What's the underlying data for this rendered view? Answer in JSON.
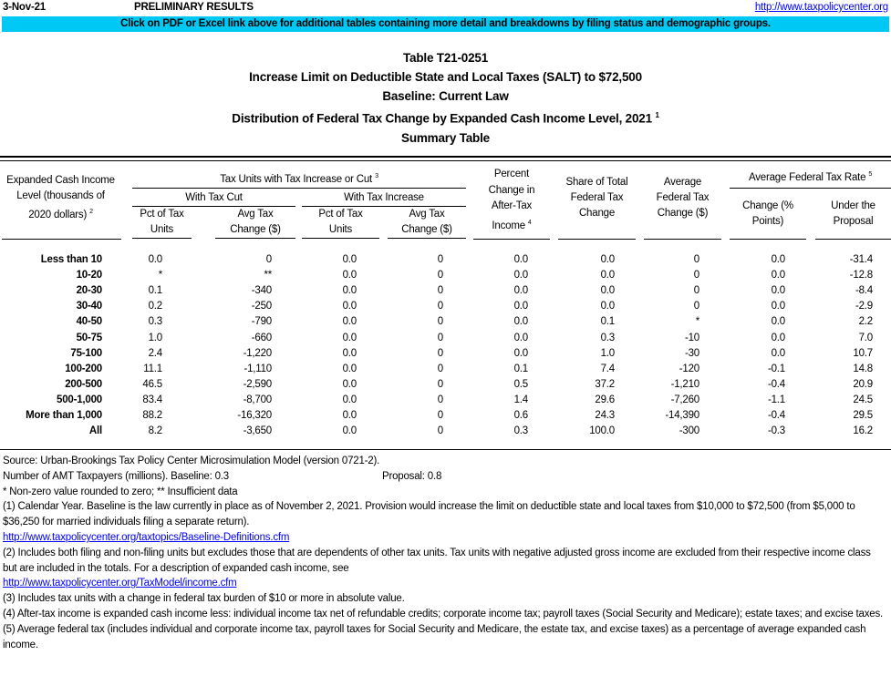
{
  "header": {
    "date": "3-Nov-21",
    "status": "PRELIMINARY RESULTS",
    "link": "http://www.taxpolicycenter.org"
  },
  "banner": "Click on PDF or Excel link above for additional tables containing more detail and breakdowns by filing status and demographic groups.",
  "titles": [
    "Table T21-0251",
    "Increase Limit on Deductible State and Local Taxes (SALT) to $72,500",
    "Baseline: Current Law",
    "Distribution of Federal Tax Change by Expanded Cash Income Level, 2021",
    "Summary Table"
  ],
  "title_footnote": "1",
  "columns": {
    "income": [
      "Expanded Cash Income",
      "Level (thousands of",
      "2020 dollars)"
    ],
    "income_fn": "2",
    "group": "Tax Units with Tax Increase or Cut",
    "group_fn": "3",
    "cut": "With Tax Cut",
    "increase": "With Tax Increase",
    "pct": [
      "Pct of Tax",
      "Units"
    ],
    "avg": [
      "Avg Tax",
      "Change ($)"
    ],
    "pctchange": [
      "Percent",
      "Change in",
      "After-Tax",
      "Income"
    ],
    "pctchange_fn": "4",
    "share": [
      "Share of Total",
      "Federal Tax",
      "Change"
    ],
    "avgfed": [
      "Average",
      "Federal Tax",
      "Change ($)"
    ],
    "rate": "Average Federal Tax Rate",
    "rate_fn": "5",
    "rate_change": [
      "Change (%",
      "Points)"
    ],
    "rate_under": [
      "Under the",
      "Proposal"
    ]
  },
  "rows": [
    [
      "Less than 10",
      "0.0",
      "0",
      "0.0",
      "0",
      "0.0",
      "0.0",
      "0",
      "0.0",
      "-31.4"
    ],
    [
      "10-20",
      "*",
      "**",
      "0.0",
      "0",
      "0.0",
      "0.0",
      "0",
      "0.0",
      "-12.8"
    ],
    [
      "20-30",
      "0.1",
      "-340",
      "0.0",
      "0",
      "0.0",
      "0.0",
      "0",
      "0.0",
      "-8.4"
    ],
    [
      "30-40",
      "0.2",
      "-250",
      "0.0",
      "0",
      "0.0",
      "0.0",
      "0",
      "0.0",
      "-2.9"
    ],
    [
      "40-50",
      "0.3",
      "-790",
      "0.0",
      "0",
      "0.0",
      "0.1",
      "*",
      "0.0",
      "2.2"
    ],
    [
      "50-75",
      "1.0",
      "-660",
      "0.0",
      "0",
      "0.0",
      "0.3",
      "-10",
      "0.0",
      "7.0"
    ],
    [
      "75-100",
      "2.4",
      "-1,220",
      "0.0",
      "0",
      "0.0",
      "1.0",
      "-30",
      "0.0",
      "10.7"
    ],
    [
      "100-200",
      "11.1",
      "-1,110",
      "0.0",
      "0",
      "0.1",
      "7.4",
      "-120",
      "-0.1",
      "14.8"
    ],
    [
      "200-500",
      "46.5",
      "-2,590",
      "0.0",
      "0",
      "0.5",
      "37.2",
      "-1,210",
      "-0.4",
      "20.9"
    ],
    [
      "500-1,000",
      "83.4",
      "-8,700",
      "0.0",
      "0",
      "1.4",
      "29.6",
      "-7,260",
      "-1.1",
      "24.5"
    ],
    [
      "More than 1,000",
      "88.2",
      "-16,320",
      "0.0",
      "0",
      "0.6",
      "24.3",
      "-14,390",
      "-0.4",
      "29.5"
    ],
    [
      "All",
      "8.2",
      "-3,650",
      "0.0",
      "0",
      "0.3",
      "100.0",
      "-300",
      "-0.3",
      "16.2"
    ]
  ],
  "notes": {
    "source": "Source: Urban-Brookings Tax Policy Center Microsimulation Model (version 0721-2).",
    "amt": "Number of AMT Taxpayers (millions).  Baseline: 0.3",
    "amt_prop": "Proposal: 0.8",
    "star": "* Non-zero value rounded to zero; ** Insufficient data",
    "n1": "(1) Calendar Year. Baseline is the law currently in place as of November 2, 2021. Provision would increase the limit on deductible state and local taxes from $10,000 to $72,500 (from $5,000 to $36,250 for married individuals filing a separate return).",
    "n1_link": "http://www.taxpolicycenter.org/taxtopics/Baseline-Definitions.cfm",
    "n2": "(2) Includes both filing and non-filing units but excludes those that are dependents of other tax units. Tax units with negative adjusted gross income are excluded from their respective income class but are included in the totals. For a description of expanded cash income, see",
    "n2_link": "http://www.taxpolicycenter.org/TaxModel/income.cfm",
    "n3": "(3) Includes tax units with a change in federal tax burden of $10 or more in absolute value.",
    "n4": "(4) After-tax income is expanded cash income less: individual income tax net of refundable credits; corporate income tax; payroll taxes (Social Security and Medicare); estate taxes; and excise taxes.",
    "n5": "(5) Average federal tax (includes individual and corporate income tax, payroll taxes for Social Security and Medicare, the estate tax, and excise taxes) as a percentage of average expanded cash income."
  },
  "colors": {
    "banner": "#00c8f5",
    "link": "#0000ff"
  }
}
